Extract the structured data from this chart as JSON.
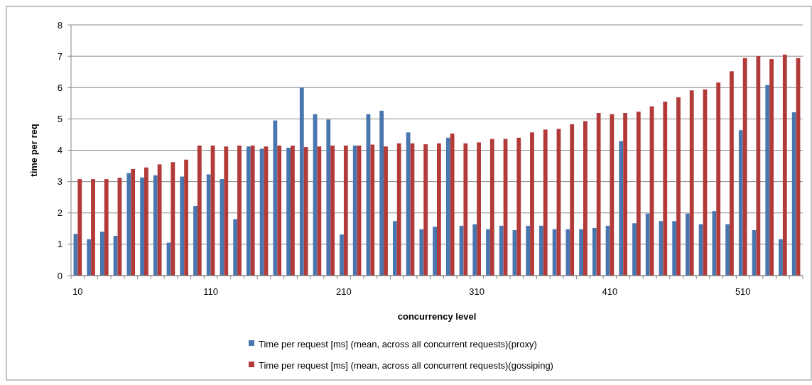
{
  "chart_data": {
    "type": "bar",
    "xlabel": "concurrency level",
    "ylabel": "time per req",
    "categories": [
      "10",
      null,
      null,
      null,
      null,
      null,
      null,
      null,
      null,
      null,
      "110",
      null,
      null,
      null,
      null,
      null,
      null,
      null,
      null,
      null,
      "210",
      null,
      null,
      null,
      null,
      null,
      null,
      null,
      null,
      null,
      "310",
      null,
      null,
      null,
      null,
      null,
      null,
      null,
      null,
      null,
      "410",
      null,
      null,
      null,
      null,
      null,
      null,
      null,
      null,
      null,
      "510",
      null,
      null,
      null,
      null
    ],
    "series": [
      {
        "name": "Time per request [ms] (mean, across all concurrent requests)(proxy)",
        "color": "#4a76b0",
        "values": [
          1.33,
          1.16,
          1.4,
          1.27,
          3.27,
          3.13,
          3.2,
          1.05,
          3.16,
          2.22,
          3.23,
          3.08,
          1.8,
          4.12,
          4.05,
          4.95,
          4.08,
          6.0,
          5.15,
          4.98,
          1.31,
          4.15,
          5.15,
          5.26,
          1.74,
          4.57,
          1.48,
          1.56,
          4.4,
          1.59,
          1.64,
          1.48,
          1.59,
          1.45,
          1.59,
          1.59,
          1.48,
          1.48,
          1.48,
          1.52,
          1.59,
          4.29,
          1.67,
          1.98,
          1.74,
          1.74,
          1.98,
          1.64,
          2.06,
          1.64,
          4.64,
          1.45,
          6.08,
          1.16,
          5.21
        ]
      },
      {
        "name": "Time per request [ms] (mean, across all concurrent requests)(gossiping)",
        "color": "#b23b3a",
        "values": [
          3.08,
          3.08,
          3.08,
          3.12,
          3.4,
          3.45,
          3.55,
          3.62,
          3.7,
          4.15,
          4.15,
          4.12,
          4.15,
          4.15,
          4.12,
          4.15,
          4.15,
          4.1,
          4.12,
          4.15,
          4.15,
          4.15,
          4.18,
          4.12,
          4.22,
          4.22,
          4.19,
          4.22,
          4.53,
          4.22,
          4.25,
          4.36,
          4.36,
          4.4,
          4.57,
          4.66,
          4.68,
          4.83,
          4.93,
          5.19,
          5.15,
          5.19,
          5.23,
          5.4,
          5.55,
          5.69,
          5.91,
          5.94,
          6.16,
          6.52,
          6.94,
          7.0,
          6.91,
          7.05,
          6.94
        ]
      }
    ],
    "ylim": [
      0,
      8
    ],
    "yticks": [
      0,
      1,
      2,
      3,
      4,
      5,
      6,
      7,
      8
    ],
    "grid": "y",
    "legend": "bottom"
  }
}
